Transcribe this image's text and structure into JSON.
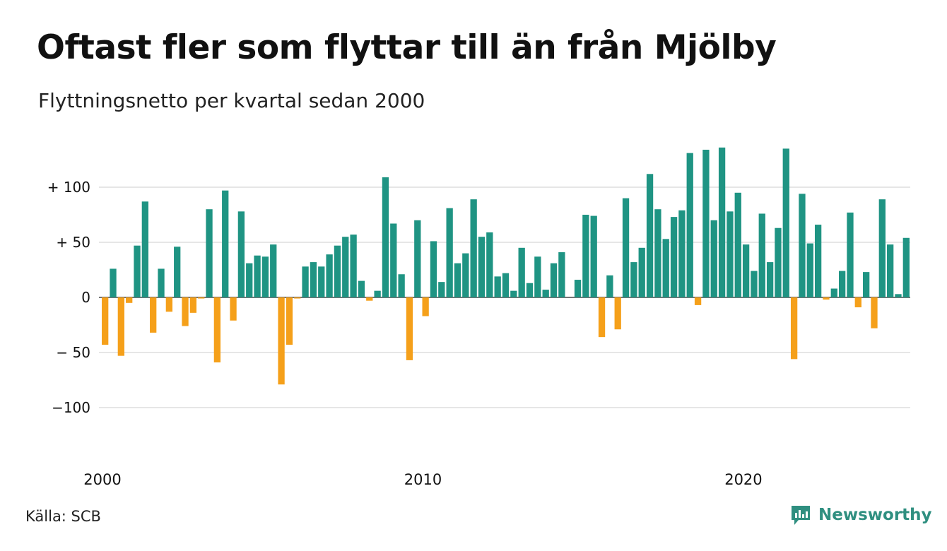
{
  "header": {
    "title": "Oftast fler som flyttar till än från Mjölby",
    "subtitle": "Flyttningsnetto per kvartal sedan 2000"
  },
  "footer": {
    "source": "Källa: SCB",
    "brand": "Newsworthy"
  },
  "colors": {
    "positive": "#1f9483",
    "negative": "#f5a01a",
    "grid": "#dddddd",
    "brand": "#2f8f80"
  },
  "chart_data": {
    "type": "bar",
    "title": "Oftast fler som flyttar till än från Mjölby",
    "subtitle": "Flyttningsnetto per kvartal sedan 2000",
    "x_start": "2000-Q1",
    "x_tick_labels": [
      "2000",
      "2010",
      "2020"
    ],
    "y_ticks": [
      {
        "value": 100,
        "label": "+ 100"
      },
      {
        "value": 50,
        "label": "+  50"
      },
      {
        "value": 0,
        "label": "0"
      },
      {
        "value": -50,
        "label": "− 50"
      },
      {
        "value": -100,
        "label": "−100"
      }
    ],
    "ylim": [
      -130,
      137
    ],
    "grid": true,
    "values": [
      -43,
      26,
      -53,
      -5,
      47,
      87,
      -32,
      26,
      -13,
      46,
      -26,
      -14,
      -1,
      80,
      -59,
      97,
      -21,
      78,
      31,
      38,
      37,
      48,
      -79,
      -43,
      -1,
      28,
      32,
      28,
      39,
      47,
      55,
      57,
      15,
      -3,
      6,
      109,
      67,
      21,
      -57,
      70,
      -17,
      51,
      14,
      81,
      31,
      40,
      89,
      55,
      59,
      19,
      22,
      6,
      45,
      13,
      37,
      7,
      31,
      41,
      0,
      16,
      75,
      74,
      -36,
      20,
      -29,
      90,
      32,
      45,
      112,
      80,
      53,
      73,
      79,
      131,
      -7,
      134,
      70,
      136,
      78,
      95,
      48,
      24,
      76,
      32,
      63,
      135,
      -56,
      94,
      49,
      66,
      -2,
      8,
      24,
      77,
      -9,
      23,
      -28,
      89,
      48,
      3,
      54
    ]
  }
}
